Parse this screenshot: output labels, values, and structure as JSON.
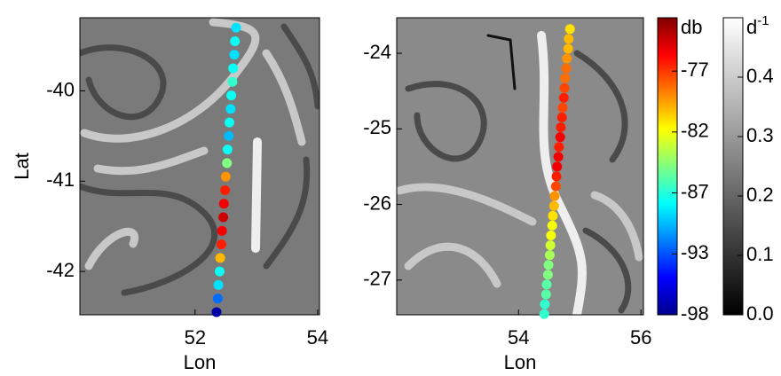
{
  "chart_data": [
    {
      "type": "scatter",
      "xlabel": "Lon",
      "ylabel": "Lat",
      "xlim": [
        50.12,
        54.03
      ],
      "ylim": [
        -42.48,
        -39.19
      ],
      "xticks": [
        52,
        54
      ],
      "yticks": [
        -42,
        -41,
        -40
      ],
      "colormap": "jet",
      "series": [
        {
          "x": [
            52.35,
            52.37,
            52.38,
            52.4,
            52.41,
            52.43,
            52.44,
            52.46,
            52.47,
            52.49,
            52.5,
            52.52,
            52.53,
            52.55,
            52.56,
            52.58,
            52.59,
            52.61,
            52.62,
            52.64,
            52.65,
            52.67
          ],
          "values": [
            -42.45,
            -42.3,
            -42.15,
            -42.0,
            -41.85,
            -41.7,
            -41.55,
            -41.4,
            -41.25,
            -41.1,
            -40.95,
            -40.8,
            -40.65,
            -40.5,
            -40.35,
            -40.2,
            -40.05,
            -39.9,
            -39.75,
            -39.6,
            -39.45,
            -39.3
          ],
          "color_values": [
            -97,
            -92,
            -89,
            -88,
            -80,
            -76,
            -75,
            -74,
            -75,
            -76,
            -79,
            -85,
            -88,
            -90,
            -88,
            -89,
            -88,
            -87,
            -88,
            -89,
            -88,
            -89
          ]
        }
      ]
    },
    {
      "type": "scatter",
      "xlabel": "Lon",
      "xlim": [
        52.01,
        56.04
      ],
      "ylim": [
        -27.46,
        -23.53
      ],
      "xticks": [
        54,
        56
      ],
      "yticks": [
        -27,
        -26,
        -25,
        -24
      ],
      "colormap": "jet",
      "series": [
        {
          "x": [
            54.42,
            54.43,
            54.45,
            54.46,
            54.48,
            54.49,
            54.51,
            54.52,
            54.53,
            54.55,
            54.56,
            54.58,
            54.59,
            54.61,
            54.62,
            54.63,
            54.65,
            54.66,
            54.68,
            54.69,
            54.71,
            54.72,
            54.74,
            54.75,
            54.76,
            54.78,
            54.79,
            54.81,
            54.82,
            54.84
          ],
          "values": [
            -27.45,
            -27.32,
            -27.19,
            -27.06,
            -26.93,
            -26.8,
            -26.67,
            -26.54,
            -26.41,
            -26.28,
            -26.15,
            -26.02,
            -25.89,
            -25.76,
            -25.63,
            -25.5,
            -25.37,
            -25.24,
            -25.11,
            -24.98,
            -24.85,
            -24.72,
            -24.59,
            -24.46,
            -24.33,
            -24.2,
            -24.07,
            -23.94,
            -23.81,
            -23.68
          ],
          "color_values": [
            -87,
            -87,
            -86,
            -86,
            -85,
            -85,
            -84,
            -83,
            -82,
            -82,
            -81,
            -80,
            -79,
            -77,
            -76,
            -75,
            -75,
            -76,
            -75,
            -76,
            -76,
            -77,
            -76,
            -77,
            -78,
            -78,
            -79,
            -80,
            -80,
            -81
          ]
        }
      ]
    }
  ],
  "colorbars": [
    {
      "label": "db",
      "colormap": "jet",
      "lim": [
        -98,
        -72
      ],
      "ticks": [
        {
          "value": -98,
          "label": "-98"
        },
        {
          "value": -92.67,
          "label": "-93"
        },
        {
          "value": -87.33,
          "label": "-87"
        },
        {
          "value": -82,
          "label": "-82"
        },
        {
          "value": -76.67,
          "label": "-77"
        }
      ]
    },
    {
      "label": {
        "base": "d",
        "exponent": "-1"
      },
      "colormap": "gray",
      "lim": [
        0,
        0.5
      ],
      "ticks": [
        {
          "value": 0,
          "label": "0.0"
        },
        0.1,
        0.2,
        0.3,
        0.4
      ]
    }
  ]
}
